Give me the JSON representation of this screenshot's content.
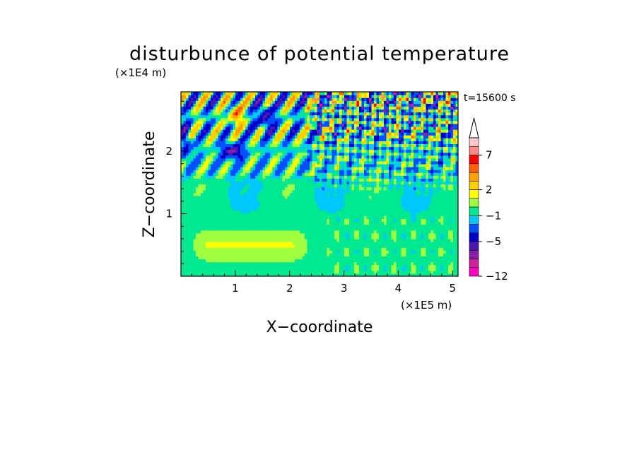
{
  "chart_data": {
    "type": "heatmap",
    "title": "disturbunce of potential temperature",
    "xlabel": "X−coordinate",
    "ylabel": "Z−coordinate",
    "x_unit_label": "(×1E5 m)",
    "y_unit_label": "(×1E4 m)",
    "time_label": "t=15600 s",
    "x_ticks": [
      "1",
      "2",
      "3",
      "4",
      "5"
    ],
    "x_tick_values": [
      1,
      2,
      3,
      4,
      5
    ],
    "y_ticks": [
      "1",
      "2"
    ],
    "y_tick_values": [
      1,
      2
    ],
    "xlim": [
      0,
      5.1
    ],
    "ylim": [
      0,
      2.95
    ],
    "grid": false,
    "colorbar": {
      "levels": [
        -12,
        -5,
        -1,
        2,
        7
      ],
      "labels": [
        "−12",
        "−5",
        "−1",
        "2",
        "7"
      ],
      "colors": [
        "#ff00c0",
        "#d020a0",
        "#8a20a8",
        "#4b18b0",
        "#0000c8",
        "#0050ff",
        "#00c8ff",
        "#00e890",
        "#a0ff40",
        "#ffff00",
        "#ffd000",
        "#ffa000",
        "#ff6000",
        "#ff0000",
        "#ff8888",
        "#ffc8c8"
      ]
    }
  }
}
